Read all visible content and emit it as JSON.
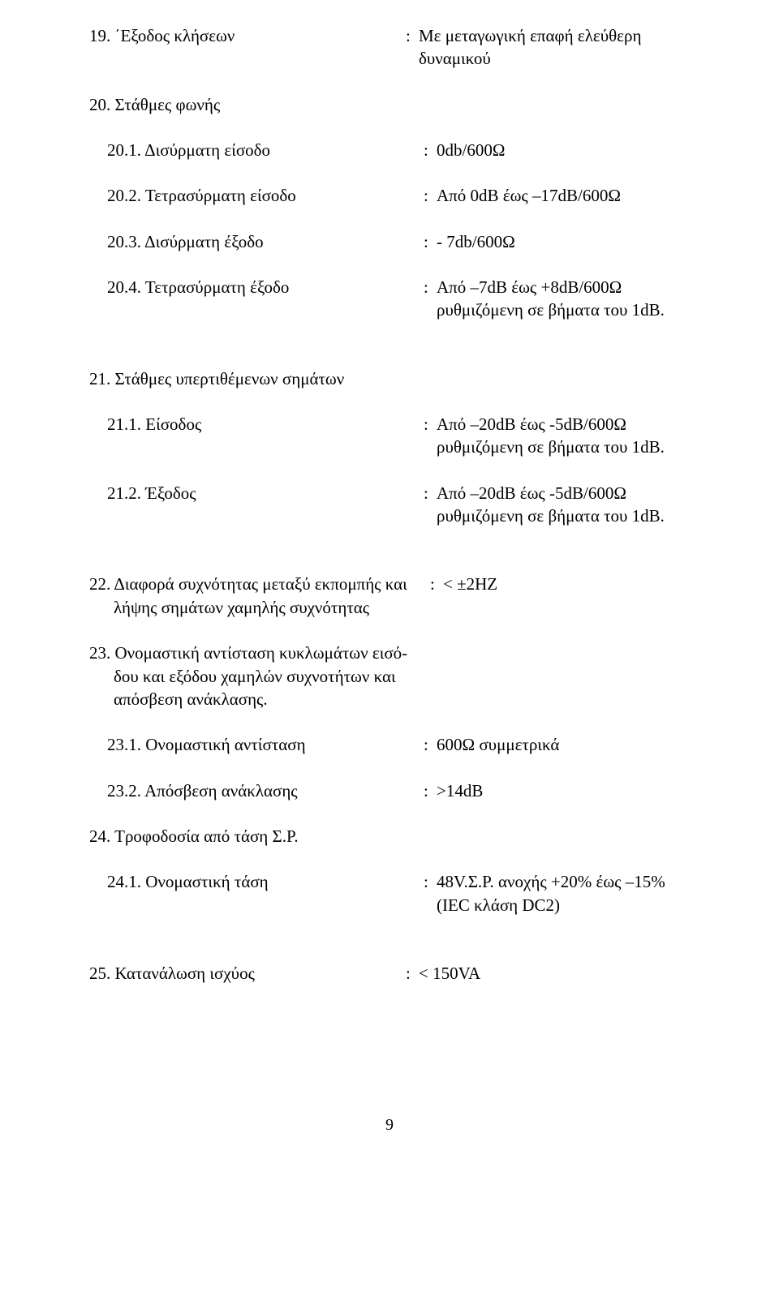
{
  "r19": {
    "label": "19. ΄Εξοδος κλήσεων",
    "value": "Με μεταγωγική επαφή ελεύθερη δυναμικού"
  },
  "r20": {
    "label": "20. Στάθμες φωνής"
  },
  "r20_1": {
    "label": "20.1. Δισύρματη είσοδο",
    "value": "0db/600Ω"
  },
  "r20_2": {
    "label": "20.2. Τετρασύρματη είσοδο",
    "value": "Από 0dB έως –17dB/600Ω"
  },
  "r20_3": {
    "label": "20.3. Δισύρματη έξοδο",
    "value": "- 7db/600Ω"
  },
  "r20_4": {
    "label": "20.4. Τετρασύρματη έξοδο",
    "value": "Από –7dB έως +8dB/600Ω ρυθμιζόμενη σε βήματα του 1dB."
  },
  "r21": {
    "label": "21. Στάθμες υπερτιθέμενων σημάτων"
  },
  "r21_1": {
    "label": "21.1. Είσοδος",
    "value": "Από –20dB έως -5dB/600Ω ρυθμιζόμενη σε βήματα του 1dB."
  },
  "r21_2": {
    "label": "21.2. Έξοδος",
    "value": "Από –20dB έως -5dB/600Ω ρυθμιζόμενη σε βήματα του 1dB."
  },
  "r22": {
    "label": "22. Διαφορά συχνότητας μεταξύ εκπομπής και λήψης σημάτων χαμηλής συχνότητας",
    "value": "< ±2HZ"
  },
  "r23": {
    "label": "23. Ονομαστική αντίσταση κυκλωμάτων εισό-δου και εξόδου χαμηλών συχνοτήτων και απόσβεση ανάκλασης."
  },
  "r23_1": {
    "label": "23.1. Ονομαστική αντίσταση",
    "value": "600Ω συμμετρικά"
  },
  "r23_2": {
    "label": "23.2. Απόσβεση ανάκλασης",
    "value": ">14dB"
  },
  "r24": {
    "label": "24. Τροφοδοσία από τάση Σ.Ρ."
  },
  "r24_1": {
    "label": "24.1. Ονομαστική τάση",
    "value": "48V.Σ.Ρ. ανοχής +20% έως –15% (IEC κλάση DC2)"
  },
  "r25": {
    "label": "25. Κατανάλωση ισχύος",
    "value": "< 150VA"
  },
  "pagenum": "9"
}
